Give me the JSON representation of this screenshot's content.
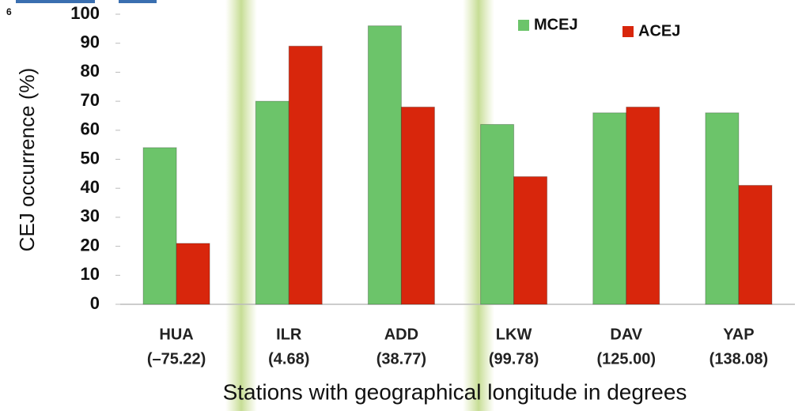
{
  "corner_label": "6",
  "chart_data": {
    "type": "bar",
    "y_label": "CEJ occurrence (%)",
    "x_label": "Stations with geographical longitude in degrees",
    "categories": [
      "HUA",
      "ILR",
      "ADD",
      "LKW",
      "DAV",
      "YAP"
    ],
    "longitudes": [
      "(–75.22)",
      "(4.68)",
      "(38.77)",
      "(99.78)",
      "(125.00)",
      "(138.08)"
    ],
    "series": [
      {
        "name": "MCEJ",
        "color": "#6cc46a",
        "values": [
          54,
          70,
          96,
          62,
          66,
          66
        ]
      },
      {
        "name": "ACEJ",
        "color": "#d8260c",
        "values": [
          21,
          89,
          68,
          44,
          68,
          41
        ]
      }
    ],
    "ylim": [
      0,
      100
    ],
    "yticks": [
      0,
      10,
      20,
      30,
      40,
      50,
      60,
      70,
      80,
      90,
      100
    ],
    "grid": false,
    "legend": "top-right"
  }
}
